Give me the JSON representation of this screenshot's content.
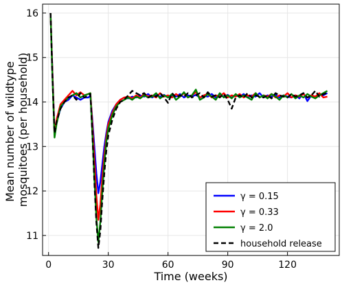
{
  "chart_data": {
    "type": "line",
    "xlabel": "Time (weeks)",
    "ylabel": [
      "Mean number of wildtype",
      "mosquitoes (per household)"
    ],
    "xlim": [
      -3,
      146
    ],
    "ylim": [
      10.55,
      16.2
    ],
    "xticks": [
      0,
      30,
      60,
      90,
      120
    ],
    "yticks": [
      11,
      12,
      13,
      14,
      15,
      16
    ],
    "grid": true,
    "legend_position": "bottom-right",
    "series": [
      {
        "name": "γ = 0.15",
        "color": "#0000ff",
        "dash": "solid",
        "points": [
          [
            1,
            16.0
          ],
          [
            2,
            14.6
          ],
          [
            3,
            13.3
          ],
          [
            4,
            13.55
          ],
          [
            6,
            13.85
          ],
          [
            8,
            14.0
          ],
          [
            10,
            14.05
          ],
          [
            12,
            14.15
          ],
          [
            14,
            14.1
          ],
          [
            16,
            14.05
          ],
          [
            18,
            14.1
          ],
          [
            20,
            14.1
          ],
          [
            21,
            14.15
          ],
          [
            22,
            13.6
          ],
          [
            23,
            13.0
          ],
          [
            24,
            12.4
          ],
          [
            25,
            11.95
          ],
          [
            26,
            12.2
          ],
          [
            27,
            12.6
          ],
          [
            28,
            13.0
          ],
          [
            29,
            13.3
          ],
          [
            30,
            13.55
          ],
          [
            32,
            13.8
          ],
          [
            34,
            13.95
          ],
          [
            36,
            14.05
          ],
          [
            38,
            14.1
          ],
          [
            40,
            14.08
          ],
          [
            42,
            14.12
          ],
          [
            44,
            14.1
          ],
          [
            46,
            14.15
          ],
          [
            48,
            14.12
          ],
          [
            50,
            14.18
          ],
          [
            52,
            14.1
          ],
          [
            54,
            14.15
          ],
          [
            56,
            14.12
          ],
          [
            58,
            14.16
          ],
          [
            60,
            14.1
          ],
          [
            62,
            14.15
          ],
          [
            64,
            14.12
          ],
          [
            66,
            14.18
          ],
          [
            68,
            14.1
          ],
          [
            70,
            14.15
          ],
          [
            72,
            14.12
          ],
          [
            74,
            14.16
          ],
          [
            76,
            14.1
          ],
          [
            78,
            14.14
          ],
          [
            80,
            14.12
          ],
          [
            82,
            14.18
          ],
          [
            84,
            14.1
          ],
          [
            86,
            14.15
          ],
          [
            88,
            14.12
          ],
          [
            90,
            14.16
          ],
          [
            92,
            14.1
          ],
          [
            94,
            14.15
          ],
          [
            96,
            14.12
          ],
          [
            98,
            14.18
          ],
          [
            100,
            14.1
          ],
          [
            102,
            14.15
          ],
          [
            104,
            14.12
          ],
          [
            106,
            14.2
          ],
          [
            108,
            14.1
          ],
          [
            110,
            14.15
          ],
          [
            112,
            14.12
          ],
          [
            114,
            14.16
          ],
          [
            116,
            14.1
          ],
          [
            118,
            14.15
          ],
          [
            120,
            14.12
          ],
          [
            122,
            14.1
          ],
          [
            124,
            14.15
          ],
          [
            126,
            14.08
          ],
          [
            128,
            14.2
          ],
          [
            130,
            14.02
          ],
          [
            132,
            14.15
          ],
          [
            134,
            14.12
          ],
          [
            136,
            14.18
          ],
          [
            138,
            14.15
          ],
          [
            140,
            14.2
          ]
        ]
      },
      {
        "name": "γ = 0.33",
        "color": "#ff0000",
        "dash": "solid",
        "points": [
          [
            1,
            16.0
          ],
          [
            2,
            14.6
          ],
          [
            3,
            13.3
          ],
          [
            4,
            13.6
          ],
          [
            6,
            13.95
          ],
          [
            8,
            14.05
          ],
          [
            10,
            14.15
          ],
          [
            12,
            14.25
          ],
          [
            14,
            14.15
          ],
          [
            16,
            14.22
          ],
          [
            18,
            14.15
          ],
          [
            20,
            14.18
          ],
          [
            21,
            14.2
          ],
          [
            22,
            13.5
          ],
          [
            23,
            12.7
          ],
          [
            24,
            11.9
          ],
          [
            25,
            11.35
          ],
          [
            26,
            11.7
          ],
          [
            27,
            12.3
          ],
          [
            28,
            12.8
          ],
          [
            29,
            13.2
          ],
          [
            30,
            13.5
          ],
          [
            32,
            13.75
          ],
          [
            34,
            13.95
          ],
          [
            36,
            14.05
          ],
          [
            38,
            14.1
          ],
          [
            40,
            14.12
          ],
          [
            42,
            14.08
          ],
          [
            44,
            14.15
          ],
          [
            46,
            14.1
          ],
          [
            48,
            14.18
          ],
          [
            50,
            14.12
          ],
          [
            52,
            14.15
          ],
          [
            54,
            14.1
          ],
          [
            56,
            14.2
          ],
          [
            58,
            14.12
          ],
          [
            60,
            14.15
          ],
          [
            62,
            14.1
          ],
          [
            64,
            14.18
          ],
          [
            66,
            14.12
          ],
          [
            68,
            14.2
          ],
          [
            70,
            14.1
          ],
          [
            72,
            14.15
          ],
          [
            74,
            14.22
          ],
          [
            76,
            14.1
          ],
          [
            78,
            14.15
          ],
          [
            80,
            14.18
          ],
          [
            82,
            14.1
          ],
          [
            84,
            14.15
          ],
          [
            86,
            14.12
          ],
          [
            88,
            14.2
          ],
          [
            90,
            14.1
          ],
          [
            92,
            14.15
          ],
          [
            94,
            14.12
          ],
          [
            96,
            14.18
          ],
          [
            98,
            14.1
          ],
          [
            100,
            14.15
          ],
          [
            102,
            14.12
          ],
          [
            104,
            14.2
          ],
          [
            106,
            14.1
          ],
          [
            108,
            14.15
          ],
          [
            110,
            14.12
          ],
          [
            112,
            14.18
          ],
          [
            114,
            14.1
          ],
          [
            116,
            14.15
          ],
          [
            118,
            14.12
          ],
          [
            120,
            14.2
          ],
          [
            122,
            14.1
          ],
          [
            124,
            14.15
          ],
          [
            126,
            14.12
          ],
          [
            128,
            14.18
          ],
          [
            130,
            14.1
          ],
          [
            132,
            14.15
          ],
          [
            134,
            14.12
          ],
          [
            136,
            14.2
          ],
          [
            138,
            14.1
          ],
          [
            140,
            14.12
          ]
        ]
      },
      {
        "name": "γ = 2.0",
        "color": "#008000",
        "dash": "solid",
        "points": [
          [
            1,
            16.0
          ],
          [
            2,
            14.5
          ],
          [
            3,
            13.2
          ],
          [
            4,
            13.5
          ],
          [
            6,
            13.9
          ],
          [
            8,
            14.0
          ],
          [
            10,
            14.1
          ],
          [
            12,
            14.15
          ],
          [
            14,
            14.2
          ],
          [
            16,
            14.1
          ],
          [
            18,
            14.15
          ],
          [
            20,
            14.18
          ],
          [
            21,
            14.2
          ],
          [
            22,
            13.3
          ],
          [
            23,
            12.3
          ],
          [
            24,
            11.4
          ],
          [
            25,
            10.85
          ],
          [
            26,
            11.3
          ],
          [
            27,
            12.0
          ],
          [
            28,
            12.6
          ],
          [
            29,
            13.1
          ],
          [
            30,
            13.4
          ],
          [
            32,
            13.7
          ],
          [
            34,
            13.9
          ],
          [
            36,
            14.0
          ],
          [
            38,
            14.05
          ],
          [
            40,
            14.1
          ],
          [
            42,
            14.05
          ],
          [
            44,
            14.12
          ],
          [
            46,
            14.08
          ],
          [
            48,
            14.15
          ],
          [
            50,
            14.1
          ],
          [
            52,
            14.12
          ],
          [
            54,
            14.2
          ],
          [
            56,
            14.08
          ],
          [
            58,
            14.15
          ],
          [
            60,
            14.1
          ],
          [
            62,
            14.18
          ],
          [
            64,
            14.05
          ],
          [
            66,
            14.12
          ],
          [
            68,
            14.22
          ],
          [
            70,
            14.1
          ],
          [
            72,
            14.15
          ],
          [
            74,
            14.28
          ],
          [
            76,
            14.05
          ],
          [
            78,
            14.1
          ],
          [
            80,
            14.18
          ],
          [
            82,
            14.12
          ],
          [
            84,
            14.05
          ],
          [
            86,
            14.2
          ],
          [
            88,
            14.1
          ],
          [
            90,
            14.15
          ],
          [
            92,
            14.08
          ],
          [
            94,
            14.18
          ],
          [
            96,
            14.1
          ],
          [
            98,
            14.15
          ],
          [
            100,
            14.1
          ],
          [
            102,
            14.05
          ],
          [
            104,
            14.2
          ],
          [
            106,
            14.1
          ],
          [
            108,
            14.15
          ],
          [
            110,
            14.08
          ],
          [
            112,
            14.18
          ],
          [
            114,
            14.12
          ],
          [
            116,
            14.05
          ],
          [
            118,
            14.15
          ],
          [
            120,
            14.1
          ],
          [
            122,
            14.18
          ],
          [
            124,
            14.08
          ],
          [
            126,
            14.15
          ],
          [
            128,
            14.1
          ],
          [
            130,
            14.18
          ],
          [
            132,
            14.12
          ],
          [
            134,
            14.08
          ],
          [
            136,
            14.15
          ],
          [
            138,
            14.2
          ],
          [
            140,
            14.25
          ]
        ]
      },
      {
        "name": "household release",
        "color": "#000000",
        "dash": "dashed",
        "points": [
          [
            1,
            16.0
          ],
          [
            2,
            14.5
          ],
          [
            3,
            13.3
          ],
          [
            4,
            13.55
          ],
          [
            6,
            13.85
          ],
          [
            8,
            14.0
          ],
          [
            10,
            14.1
          ],
          [
            12,
            14.15
          ],
          [
            14,
            14.05
          ],
          [
            16,
            14.2
          ],
          [
            18,
            14.1
          ],
          [
            20,
            14.15
          ],
          [
            21,
            14.18
          ],
          [
            22,
            13.3
          ],
          [
            23,
            12.2
          ],
          [
            24,
            11.3
          ],
          [
            25,
            10.72
          ],
          [
            26,
            11.1
          ],
          [
            27,
            11.8
          ],
          [
            28,
            12.4
          ],
          [
            29,
            12.9
          ],
          [
            30,
            13.25
          ],
          [
            32,
            13.6
          ],
          [
            34,
            13.85
          ],
          [
            36,
            14.0
          ],
          [
            38,
            14.05
          ],
          [
            40,
            14.15
          ],
          [
            42,
            14.25
          ],
          [
            44,
            14.2
          ],
          [
            46,
            14.15
          ],
          [
            48,
            14.2
          ],
          [
            50,
            14.1
          ],
          [
            52,
            14.15
          ],
          [
            54,
            14.12
          ],
          [
            56,
            14.2
          ],
          [
            58,
            14.1
          ],
          [
            60,
            13.98
          ],
          [
            62,
            14.2
          ],
          [
            64,
            14.1
          ],
          [
            66,
            14.15
          ],
          [
            68,
            14.12
          ],
          [
            70,
            14.2
          ],
          [
            72,
            14.1
          ],
          [
            74,
            14.15
          ],
          [
            76,
            14.2
          ],
          [
            78,
            14.1
          ],
          [
            80,
            14.22
          ],
          [
            82,
            14.12
          ],
          [
            84,
            14.15
          ],
          [
            86,
            14.1
          ],
          [
            88,
            14.18
          ],
          [
            90,
            14.05
          ],
          [
            92,
            13.85
          ],
          [
            94,
            14.1
          ],
          [
            96,
            14.15
          ],
          [
            98,
            14.1
          ],
          [
            100,
            14.2
          ],
          [
            102,
            14.1
          ],
          [
            104,
            14.15
          ],
          [
            106,
            14.12
          ],
          [
            108,
            14.1
          ],
          [
            110,
            14.15
          ],
          [
            112,
            14.08
          ],
          [
            114,
            14.2
          ],
          [
            116,
            14.15
          ],
          [
            118,
            14.12
          ],
          [
            120,
            14.1
          ],
          [
            122,
            14.18
          ],
          [
            124,
            14.12
          ],
          [
            126,
            14.15
          ],
          [
            128,
            14.2
          ],
          [
            130,
            14.1
          ],
          [
            132,
            14.15
          ],
          [
            134,
            14.25
          ],
          [
            136,
            14.12
          ],
          [
            138,
            14.18
          ],
          [
            140,
            14.2
          ]
        ]
      }
    ]
  }
}
